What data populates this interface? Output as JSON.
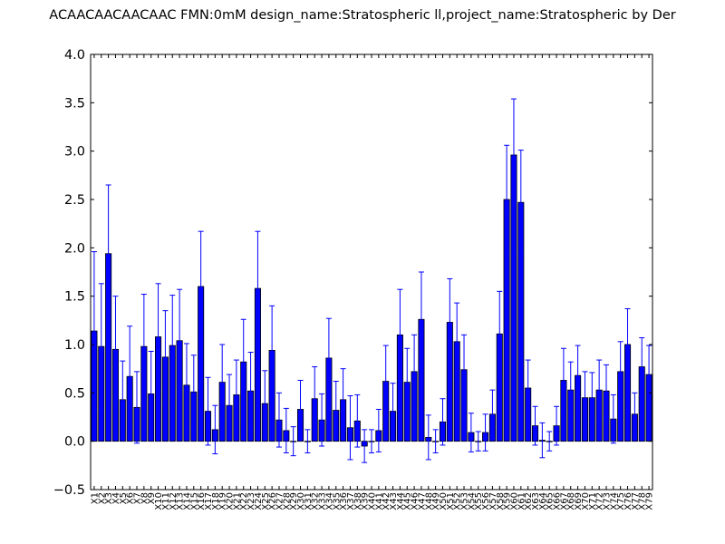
{
  "chart_data": {
    "type": "bar",
    "title": "ACAACAACAACAAC  FMN:0mM  design_name:Stratospheric ll,project_name:Stratospheric by Der",
    "xlabel": "",
    "ylabel": "",
    "ylim": [
      -0.5,
      4.0
    ],
    "yticks": [
      "−0.5",
      "0.0",
      "0.5",
      "1.0",
      "1.5",
      "2.0",
      "2.5",
      "3.0",
      "3.5",
      "4.0"
    ],
    "grid": false,
    "bar_color": "#0000ff",
    "error_color": "#0000ff",
    "categories": [
      "X1",
      "X2",
      "X3",
      "X4",
      "X5",
      "X6",
      "X7",
      "X8",
      "X9",
      "X10",
      "X11",
      "X12",
      "X13",
      "X14",
      "X15",
      "X16",
      "X17",
      "X18",
      "X19",
      "X20",
      "X21",
      "X22",
      "X23",
      "X24",
      "X25",
      "X26",
      "X27",
      "X28",
      "X29",
      "X30",
      "X31",
      "X32",
      "X33",
      "X34",
      "X35",
      "X36",
      "X37",
      "X38",
      "X39",
      "X40",
      "X41",
      "X42",
      "X43",
      "X44",
      "X45",
      "X46",
      "X47",
      "X48",
      "X49",
      "X50",
      "X51",
      "X52",
      "X53",
      "X54",
      "X55",
      "X56",
      "X57",
      "X58",
      "X59",
      "X60",
      "X61",
      "X62",
      "X63",
      "X64",
      "X65",
      "X66",
      "X67",
      "X68",
      "X69",
      "X70",
      "X71",
      "X72",
      "X73",
      "X74",
      "X75",
      "X76",
      "X77",
      "X78",
      "X79"
    ],
    "values": [
      1.14,
      0.98,
      1.94,
      0.95,
      0.43,
      0.67,
      0.35,
      0.98,
      0.49,
      1.08,
      0.87,
      0.99,
      1.04,
      0.58,
      0.51,
      1.6,
      0.31,
      0.12,
      0.61,
      0.37,
      0.48,
      0.82,
      0.52,
      1.58,
      0.39,
      0.94,
      0.22,
      0.11,
      0.0,
      0.33,
      0.0,
      0.44,
      0.22,
      0.86,
      0.32,
      0.43,
      0.14,
      0.21,
      -0.05,
      0.0,
      0.11,
      0.62,
      0.31,
      1.1,
      0.61,
      0.72,
      1.26,
      0.04,
      0.0,
      0.2,
      1.23,
      1.03,
      0.74,
      0.09,
      0.0,
      0.09,
      0.28,
      1.11,
      2.5,
      2.96,
      2.47,
      0.55,
      0.16,
      0.01,
      0.0,
      0.16,
      0.63,
      0.53,
      0.68,
      0.45,
      0.45,
      0.53,
      0.52,
      0.23,
      0.72,
      1.0,
      0.28,
      0.77,
      0.69
    ],
    "errors": [
      0.82,
      0.65,
      0.71,
      0.55,
      0.4,
      0.52,
      0.37,
      0.54,
      0.44,
      0.55,
      0.48,
      0.52,
      0.53,
      0.43,
      0.38,
      0.57,
      0.35,
      0.25,
      0.39,
      0.32,
      0.36,
      0.44,
      0.4,
      0.59,
      0.34,
      0.46,
      0.28,
      0.23,
      0.15,
      0.3,
      0.12,
      0.33,
      0.27,
      0.41,
      0.3,
      0.32,
      0.33,
      0.27,
      0.17,
      0.12,
      0.22,
      0.37,
      0.29,
      0.47,
      0.35,
      0.38,
      0.49,
      0.23,
      0.12,
      0.24,
      0.45,
      0.4,
      0.36,
      0.2,
      0.1,
      0.19,
      0.25,
      0.44,
      0.56,
      0.58,
      0.54,
      0.29,
      0.2,
      0.18,
      0.1,
      0.2,
      0.33,
      0.29,
      0.31,
      0.27,
      0.26,
      0.31,
      0.27,
      0.25,
      0.31,
      0.37,
      0.22,
      0.3,
      0.3
    ]
  }
}
